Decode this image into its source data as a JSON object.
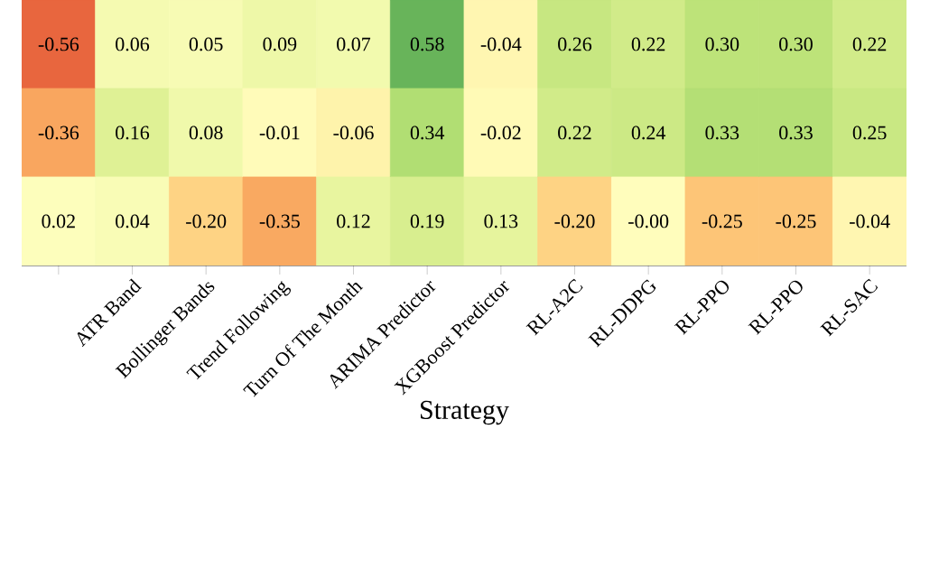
{
  "chart_data": {
    "type": "heatmap",
    "xlabel": "Strategy",
    "categories": [
      null,
      "ATR Band",
      "Bollinger Bands",
      "Trend Following",
      "Turn Of The Month",
      "ARIMA Predictor",
      "XGBoost Predictor",
      "RL-A2C",
      "RL-DDPG",
      "RL-PPO",
      "RL-PPO",
      "RL-SAC"
    ],
    "y_categories": [
      null,
      null,
      null
    ],
    "cells": [
      [
        -0.56,
        0.06,
        0.05,
        0.09,
        0.07,
        0.58,
        -0.04,
        0.26,
        0.22,
        0.3,
        0.3,
        0.22
      ],
      [
        -0.36,
        0.16,
        0.08,
        -0.01,
        -0.06,
        0.34,
        -0.02,
        0.22,
        0.24,
        0.33,
        0.33,
        0.25
      ],
      [
        0.02,
        0.04,
        -0.2,
        -0.35,
        0.12,
        0.19,
        0.13,
        -0.2,
        -0.0,
        -0.25,
        -0.25,
        -0.04
      ]
    ],
    "cell_labels": [
      [
        "-0.56",
        "0.06",
        "0.05",
        "0.09",
        "0.07",
        "0.58",
        "-0.04",
        "0.26",
        "0.22",
        "0.30",
        "0.30",
        "0.22"
      ],
      [
        "-0.36",
        "0.16",
        "0.08",
        "-0.01",
        "-0.06",
        "0.34",
        "-0.02",
        "0.22",
        "0.24",
        "0.33",
        "0.33",
        "0.25"
      ],
      [
        "0.02",
        "0.04",
        "-0.20",
        "-0.35",
        "0.12",
        "0.19",
        "0.13",
        "-0.20",
        "-0.00",
        "-0.25",
        "-0.25",
        "-0.04"
      ]
    ]
  }
}
